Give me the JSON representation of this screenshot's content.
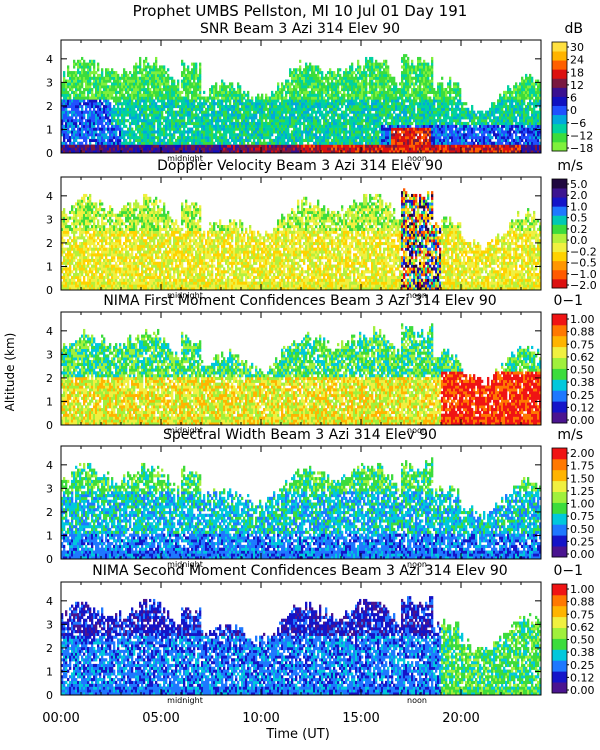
{
  "figure": {
    "suptitle": "Prophet  UMBS Pellston, MI  10 Jul 01 Day 191",
    "ylabel": "Altitude (km)",
    "xlabel": "Time (UT)",
    "x_ticks": [
      "00:00",
      "05:00",
      "10:00",
      "15:00",
      "20:00"
    ],
    "marker_midnight": "midnight",
    "marker_noon": "noon"
  },
  "chart_data": [
    {
      "type": "heatmap",
      "title": "SNR Beam 3 Azi 314 Elev 90",
      "unit": "dB",
      "ylim": [
        0,
        4.8
      ],
      "y_ticks": [
        "0",
        "1",
        "2",
        "3",
        "4"
      ],
      "xlim_hours": [
        0,
        24
      ],
      "colorbar_ticks": [
        "30",
        "24",
        "18",
        "12",
        "6",
        "0",
        "−6",
        "−12",
        "−18"
      ],
      "colors": [
        "#7ff03c",
        "#3cdc3c",
        "#00d2a0",
        "#00a8dc",
        "#2050ff",
        "#1010c0",
        "#3a1090",
        "#7a1840",
        "#dc1010",
        "#ff6000",
        "#ffb400",
        "#ffe040"
      ]
    },
    {
      "type": "heatmap",
      "title": "Doppler Velocity Beam 3 Azi 314 Elev 90",
      "unit": "m/s",
      "ylim": [
        0,
        4.8
      ],
      "y_ticks": [
        "0",
        "1",
        "2",
        "3",
        "4"
      ],
      "xlim_hours": [
        0,
        24
      ],
      "colorbar_ticks": [
        "5.0",
        "2.0",
        "1.0",
        "0.5",
        "0.2",
        "0.0",
        "−0.2",
        "−0.5",
        "−1.0",
        "−2.0"
      ],
      "colors": [
        "#dc1010",
        "#ff5a00",
        "#ff9600",
        "#ffd200",
        "#f0f040",
        "#b4f03c",
        "#3cdc3c",
        "#00c8b4",
        "#1e78ff",
        "#1414c8",
        "#3c1490",
        "#200840"
      ]
    },
    {
      "type": "heatmap",
      "title": "NIMA First Moment Confidences Beam 3 Azi 314 Elev 90",
      "unit": "0−1",
      "ylim": [
        0,
        4.8
      ],
      "y_ticks": [
        "0",
        "1",
        "2",
        "3",
        "4"
      ],
      "xlim_hours": [
        0,
        24
      ],
      "colorbar_ticks": [
        "1.00",
        "0.88",
        "0.75",
        "0.62",
        "0.50",
        "0.38",
        "0.25",
        "0.12",
        "0.00"
      ],
      "colors": [
        "#4a1490",
        "#1414c8",
        "#1e78ff",
        "#00c8dc",
        "#3cdc3c",
        "#a0f03c",
        "#f0f040",
        "#ffb400",
        "#ff7800",
        "#f01414"
      ]
    },
    {
      "type": "heatmap",
      "title": "Spectral Width Beam 3 Azi 314 Elev 90",
      "unit": "m/s",
      "ylim": [
        0,
        4.8
      ],
      "y_ticks": [
        "0",
        "1",
        "2",
        "3",
        "4"
      ],
      "xlim_hours": [
        0,
        24
      ],
      "colorbar_ticks": [
        "2.00",
        "1.75",
        "1.50",
        "1.25",
        "1.00",
        "0.75",
        "0.50",
        "0.25",
        "0.00"
      ],
      "colors": [
        "#4a1490",
        "#1414c8",
        "#1e78ff",
        "#00c8dc",
        "#3cdc3c",
        "#a0f03c",
        "#f0f040",
        "#ffb400",
        "#ff7800",
        "#f01414"
      ]
    },
    {
      "type": "heatmap",
      "title": "NIMA Second Moment Confidences Beam 3 Azi 314 Elev 90",
      "unit": "0−1",
      "ylim": [
        0,
        4.8
      ],
      "y_ticks": [
        "0",
        "1",
        "2",
        "3",
        "4"
      ],
      "xlim_hours": [
        0,
        24
      ],
      "colorbar_ticks": [
        "1.00",
        "0.88",
        "0.75",
        "0.62",
        "0.50",
        "0.38",
        "0.25",
        "0.12",
        "0.00"
      ],
      "colors": [
        "#4a1490",
        "#1414c8",
        "#1e78ff",
        "#00c8dc",
        "#3cdc3c",
        "#a0f03c",
        "#f0f040",
        "#ffb400",
        "#ff7800",
        "#f01414"
      ]
    }
  ]
}
